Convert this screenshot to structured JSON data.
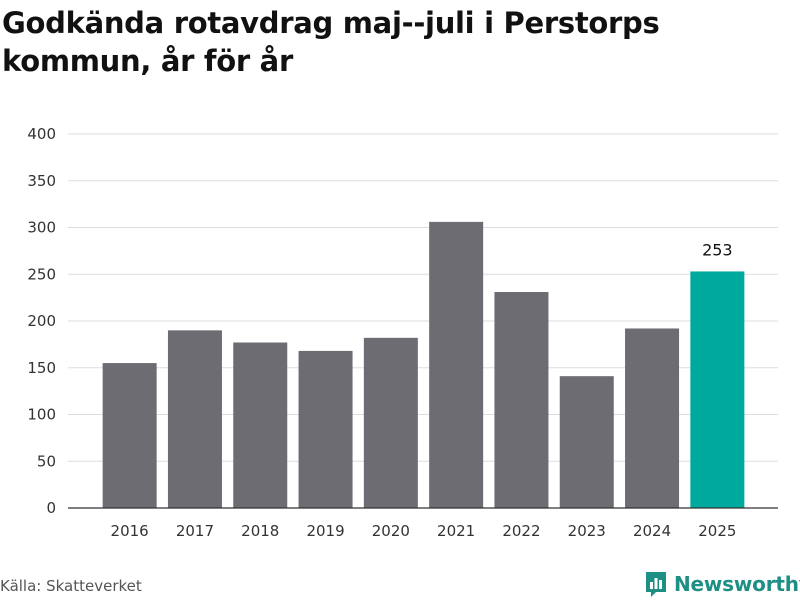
{
  "title": "Godkända rotavdrag maj--juli i Perstorps kommun, år för år",
  "source": "Källa: Skatteverket",
  "brand": {
    "name": "Newsworthy",
    "icon": "newsworthy-logo-icon",
    "color": "#1d8f84"
  },
  "chart_data": {
    "type": "bar",
    "categories": [
      "2016",
      "2017",
      "2018",
      "2019",
      "2020",
      "2021",
      "2022",
      "2023",
      "2024",
      "2025"
    ],
    "values": [
      155,
      190,
      177,
      168,
      182,
      306,
      231,
      141,
      192,
      253
    ],
    "title": "Godkända rotavdrag maj--juli i Perstorps kommun, år för år",
    "xlabel": "",
    "ylabel": "",
    "ylim": [
      0,
      400
    ],
    "yticks": [
      0,
      50,
      100,
      150,
      200,
      250,
      300,
      350,
      400
    ],
    "grid": true,
    "colors": {
      "default": "#6d6c72",
      "highlight": "#00a99d",
      "grid": "#dddddd",
      "axis": "#333333"
    },
    "highlight_index": 9,
    "data_labels": [
      {
        "index": 9,
        "text": "253"
      }
    ]
  }
}
